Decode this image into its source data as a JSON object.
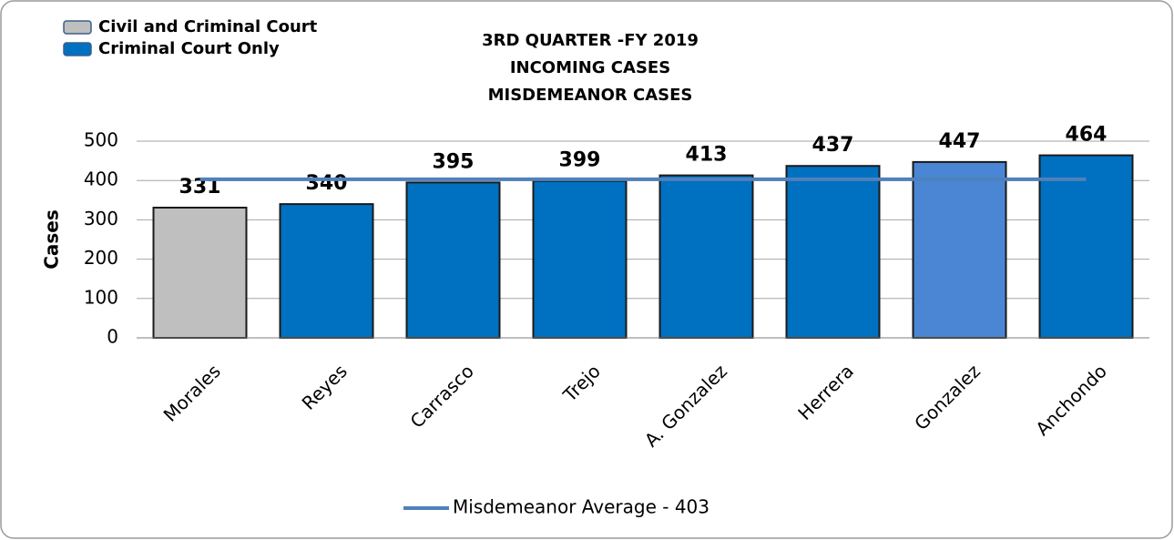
{
  "chart_data": {
    "type": "bar",
    "title": [
      "3RD QUARTER -FY 2019",
      "INCOMING CASES",
      "MISDEMEANOR CASES"
    ],
    "ylabel": "Cases",
    "categories": [
      "Morales",
      "Reyes",
      "Carrasco",
      "Trejo",
      "A. Gonzalez",
      "Herrera",
      "Gonzalez",
      "Anchondo"
    ],
    "values": [
      331,
      340,
      395,
      399,
      413,
      437,
      447,
      464
    ],
    "colors": [
      "#bfbfbf",
      "#0070c0",
      "#0070c0",
      "#0070c0",
      "#0070c0",
      "#0070c0",
      "#4a86d4",
      "#0070c0"
    ],
    "legend": [
      {
        "name": "Civil and Criminal Court",
        "color": "#bfbfbf"
      },
      {
        "name": "Criminal Court Only",
        "color": "#0070c0"
      }
    ],
    "average": {
      "name": "Misdemeanor Average - 403",
      "value": 403,
      "color": "#4f81bd"
    },
    "ylim": [
      0,
      500
    ],
    "yticks": [
      0,
      100,
      200,
      300,
      400,
      500
    ],
    "grid": true
  }
}
